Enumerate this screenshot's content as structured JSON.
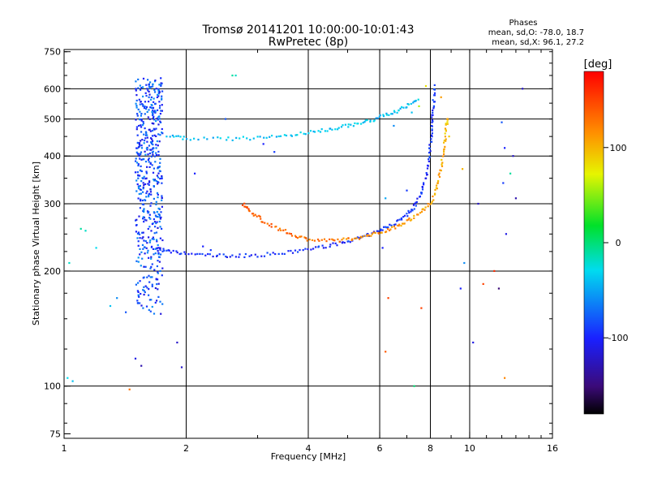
{
  "chart_data": {
    "type": "scatter",
    "title": "Tromsø 20141201 10:00:00-10:01:43",
    "subtitle": "RwPretec (8p)",
    "xlabel": "Frequency [MHz]",
    "ylabel": "Stationary phase Virtual Height [km]",
    "x_scale": "log",
    "y_scale": "log",
    "xlim": [
      1,
      16
    ],
    "ylim": [
      73,
      760
    ],
    "x_ticks": [
      {
        "value": 1,
        "label": "1"
      },
      {
        "value": 2,
        "label": "2"
      },
      {
        "value": 4,
        "label": "4"
      },
      {
        "value": 6,
        "label": "6"
      },
      {
        "value": 8,
        "label": "8"
      },
      {
        "value": 10,
        "label": "10"
      },
      {
        "value": 16,
        "label": "16"
      }
    ],
    "y_ticks": [
      {
        "value": 75,
        "label": "75"
      },
      {
        "value": 100,
        "label": "100"
      },
      {
        "value": 200,
        "label": "200"
      },
      {
        "value": 300,
        "label": "300"
      },
      {
        "value": 400,
        "label": "400"
      },
      {
        "value": 500,
        "label": "500"
      },
      {
        "value": 600,
        "label": "600"
      },
      {
        "value": 750,
        "label": "750"
      }
    ],
    "x_gridlines": [
      2,
      4,
      6,
      8,
      10
    ],
    "y_gridlines": [
      100,
      200,
      300,
      400,
      500,
      600
    ],
    "phases_header": "Phases",
    "phases_lines": [
      "mean, sd,O: -78.0, 18.7",
      "mean, sd,X:  96.1, 27.2"
    ],
    "colorbar": {
      "label": "[deg]",
      "range": [
        -180,
        180
      ],
      "ticks": [
        {
          "value": 100,
          "label": "100"
        },
        {
          "value": 0,
          "label": "0"
        },
        {
          "value": -100,
          "label": "-100"
        }
      ]
    },
    "traces": [
      {
        "name": "O-mode F-layer trace (lower)",
        "points": [
          [
            1.68,
            230
          ],
          [
            1.8,
            225
          ],
          [
            2,
            222
          ],
          [
            2.3,
            220
          ],
          [
            2.6,
            219
          ],
          [
            3,
            220
          ],
          [
            3.5,
            223
          ],
          [
            4,
            228
          ],
          [
            4.5,
            233
          ],
          [
            5,
            239
          ],
          [
            5.5,
            246
          ],
          [
            6,
            255
          ],
          [
            6.5,
            266
          ],
          [
            7,
            280
          ],
          [
            7.3,
            295
          ],
          [
            7.6,
            320
          ],
          [
            7.8,
            355
          ],
          [
            7.95,
            400
          ],
          [
            8.05,
            450
          ],
          [
            8.1,
            500
          ],
          [
            8.15,
            550
          ],
          [
            8.2,
            620
          ]
        ],
        "phase": -95
      },
      {
        "name": "X-mode F-layer trace",
        "points": [
          [
            2.75,
            300
          ],
          [
            2.9,
            285
          ],
          [
            3.1,
            270
          ],
          [
            3.4,
            257
          ],
          [
            3.7,
            248
          ],
          [
            4,
            242
          ],
          [
            4.5,
            240
          ],
          [
            5,
            242
          ],
          [
            5.5,
            246
          ],
          [
            6,
            252
          ],
          [
            6.5,
            260
          ],
          [
            7,
            270
          ],
          [
            7.5,
            282
          ],
          [
            8,
            300
          ],
          [
            8.3,
            330
          ],
          [
            8.5,
            370
          ],
          [
            8.65,
            420
          ],
          [
            8.75,
            470
          ],
          [
            8.8,
            510
          ]
        ],
        "phase_start": 140,
        "phase_end": 95
      },
      {
        "name": "Upper echo trace",
        "points": [
          [
            1.8,
            450
          ],
          [
            2,
            445
          ],
          [
            2.5,
            443
          ],
          [
            3,
            446
          ],
          [
            3.5,
            452
          ],
          [
            4,
            460
          ],
          [
            4.5,
            470
          ],
          [
            5,
            480
          ],
          [
            5.5,
            490
          ],
          [
            6,
            505
          ],
          [
            6.5,
            520
          ],
          [
            7,
            540
          ],
          [
            7.5,
            560
          ]
        ],
        "phase": -40
      },
      {
        "name": "Vertical spread cluster",
        "x_range": [
          1.5,
          1.75
        ],
        "y_range": [
          150,
          640
        ],
        "phase": -85
      }
    ],
    "scattered_points": [
      [
        1.02,
        105,
        -30
      ],
      [
        1.05,
        103,
        -40
      ],
      [
        1.1,
        258,
        -10
      ],
      [
        1.13,
        255,
        -20
      ],
      [
        1.2,
        230,
        -30
      ],
      [
        1.03,
        210,
        -20
      ],
      [
        1.3,
        162,
        -40
      ],
      [
        1.35,
        170,
        -60
      ],
      [
        1.42,
        156,
        -80
      ],
      [
        1.45,
        98,
        130
      ],
      [
        1.5,
        118,
        -110
      ],
      [
        1.55,
        113,
        -130
      ],
      [
        1.9,
        130,
        -120
      ],
      [
        1.95,
        112,
        -120
      ],
      [
        2.6,
        650,
        -10
      ],
      [
        2.65,
        650,
        -20
      ],
      [
        2.2,
        232,
        -100
      ],
      [
        2.3,
        227,
        -90
      ],
      [
        3.3,
        410,
        -90
      ],
      [
        3.1,
        430,
        -100
      ],
      [
        2.1,
        360,
        -100
      ],
      [
        2.5,
        500,
        -80
      ],
      [
        6.5,
        480,
        -60
      ],
      [
        7.2,
        520,
        -40
      ],
      [
        7.5,
        540,
        60
      ],
      [
        7.8,
        610,
        80
      ],
      [
        8.5,
        570,
        110
      ],
      [
        8.9,
        450,
        90
      ],
      [
        9.6,
        370,
        100
      ],
      [
        9.7,
        210,
        -60
      ],
      [
        6.2,
        310,
        -50
      ],
      [
        6.3,
        170,
        150
      ],
      [
        6.2,
        123,
        140
      ],
      [
        7.0,
        325,
        -90
      ],
      [
        7.3,
        100,
        0
      ],
      [
        7.6,
        160,
        150
      ],
      [
        9.5,
        180,
        -100
      ],
      [
        10.5,
        300,
        -120
      ],
      [
        10.8,
        185,
        150
      ],
      [
        11.5,
        200,
        160
      ],
      [
        12,
        490,
        -80
      ],
      [
        12.2,
        420,
        -100
      ],
      [
        12.1,
        340,
        -90
      ],
      [
        12.3,
        250,
        -110
      ],
      [
        12.2,
        105,
        120
      ],
      [
        12.8,
        400,
        -120
      ],
      [
        13,
        310,
        -130
      ],
      [
        13.5,
        600,
        -120
      ],
      [
        11.8,
        180,
        -150
      ],
      [
        12.6,
        360,
        -10
      ],
      [
        10.2,
        130,
        -110
      ],
      [
        6.1,
        230,
        -100
      ]
    ]
  }
}
